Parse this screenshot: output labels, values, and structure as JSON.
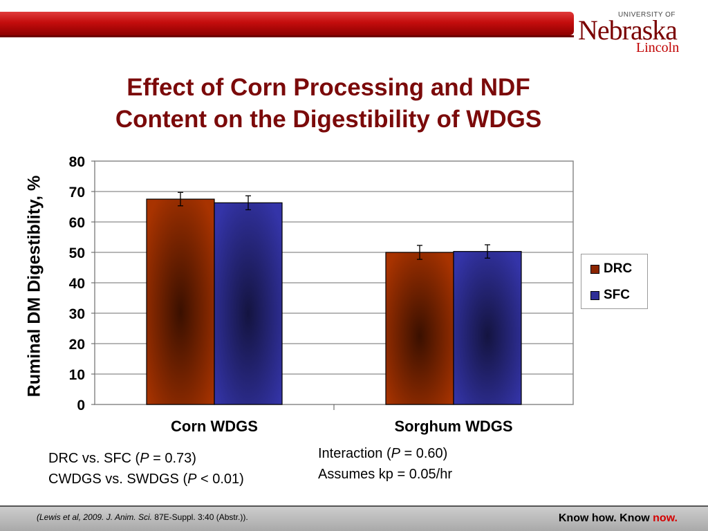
{
  "header": {
    "logo_university": "UNIVERSITY OF",
    "logo_name": "Nebraska",
    "logo_city": "Lincoln"
  },
  "slide": {
    "title_line1": "Effect of Corn Processing and NDF",
    "title_line2": "Content on the Digestibility of WDGS"
  },
  "chart_data": {
    "type": "bar",
    "title": "",
    "xlabel": "",
    "ylabel": "Ruminal DM Digestiblity, %",
    "ylim": [
      0,
      80
    ],
    "yticks": [
      0,
      10,
      20,
      30,
      40,
      50,
      60,
      70,
      80
    ],
    "ytick_labels": [
      "0",
      "10",
      "20",
      "30",
      "40",
      "50",
      "60",
      "70",
      "80"
    ],
    "categories": [
      "Corn WDGS",
      "Sorghum WDGS"
    ],
    "series": [
      {
        "name": "DRC",
        "color": "#8b2500",
        "values": [
          67.5,
          50.0
        ],
        "errors": [
          2.2,
          2.3
        ]
      },
      {
        "name": "SFC",
        "color": "#2e2e96",
        "values": [
          66.3,
          50.3
        ],
        "errors": [
          2.3,
          2.2
        ]
      }
    ],
    "grid": true,
    "legend_position": "right"
  },
  "stats": {
    "left_line1_pre": "DRC vs. SFC (",
    "left_line1_p": "P",
    "left_line1_post": " = 0.73)",
    "left_line2_pre": "CWDGS vs. SWDGS (",
    "left_line2_p": "P",
    "left_line2_post": " < 0.01)",
    "right_line1_pre": "Interaction (",
    "right_line1_p": "P",
    "right_line1_post": " = 0.60)",
    "right_line2": "Assumes kp = 0.05/hr"
  },
  "footer": {
    "citation_a": "(Lewis et al, 2009.  J. Anim. Sci.",
    "citation_b": " 87E-Suppl. 3:40 (Abstr.)).",
    "tagline_a": "Know how. Know ",
    "tagline_b": "now."
  }
}
